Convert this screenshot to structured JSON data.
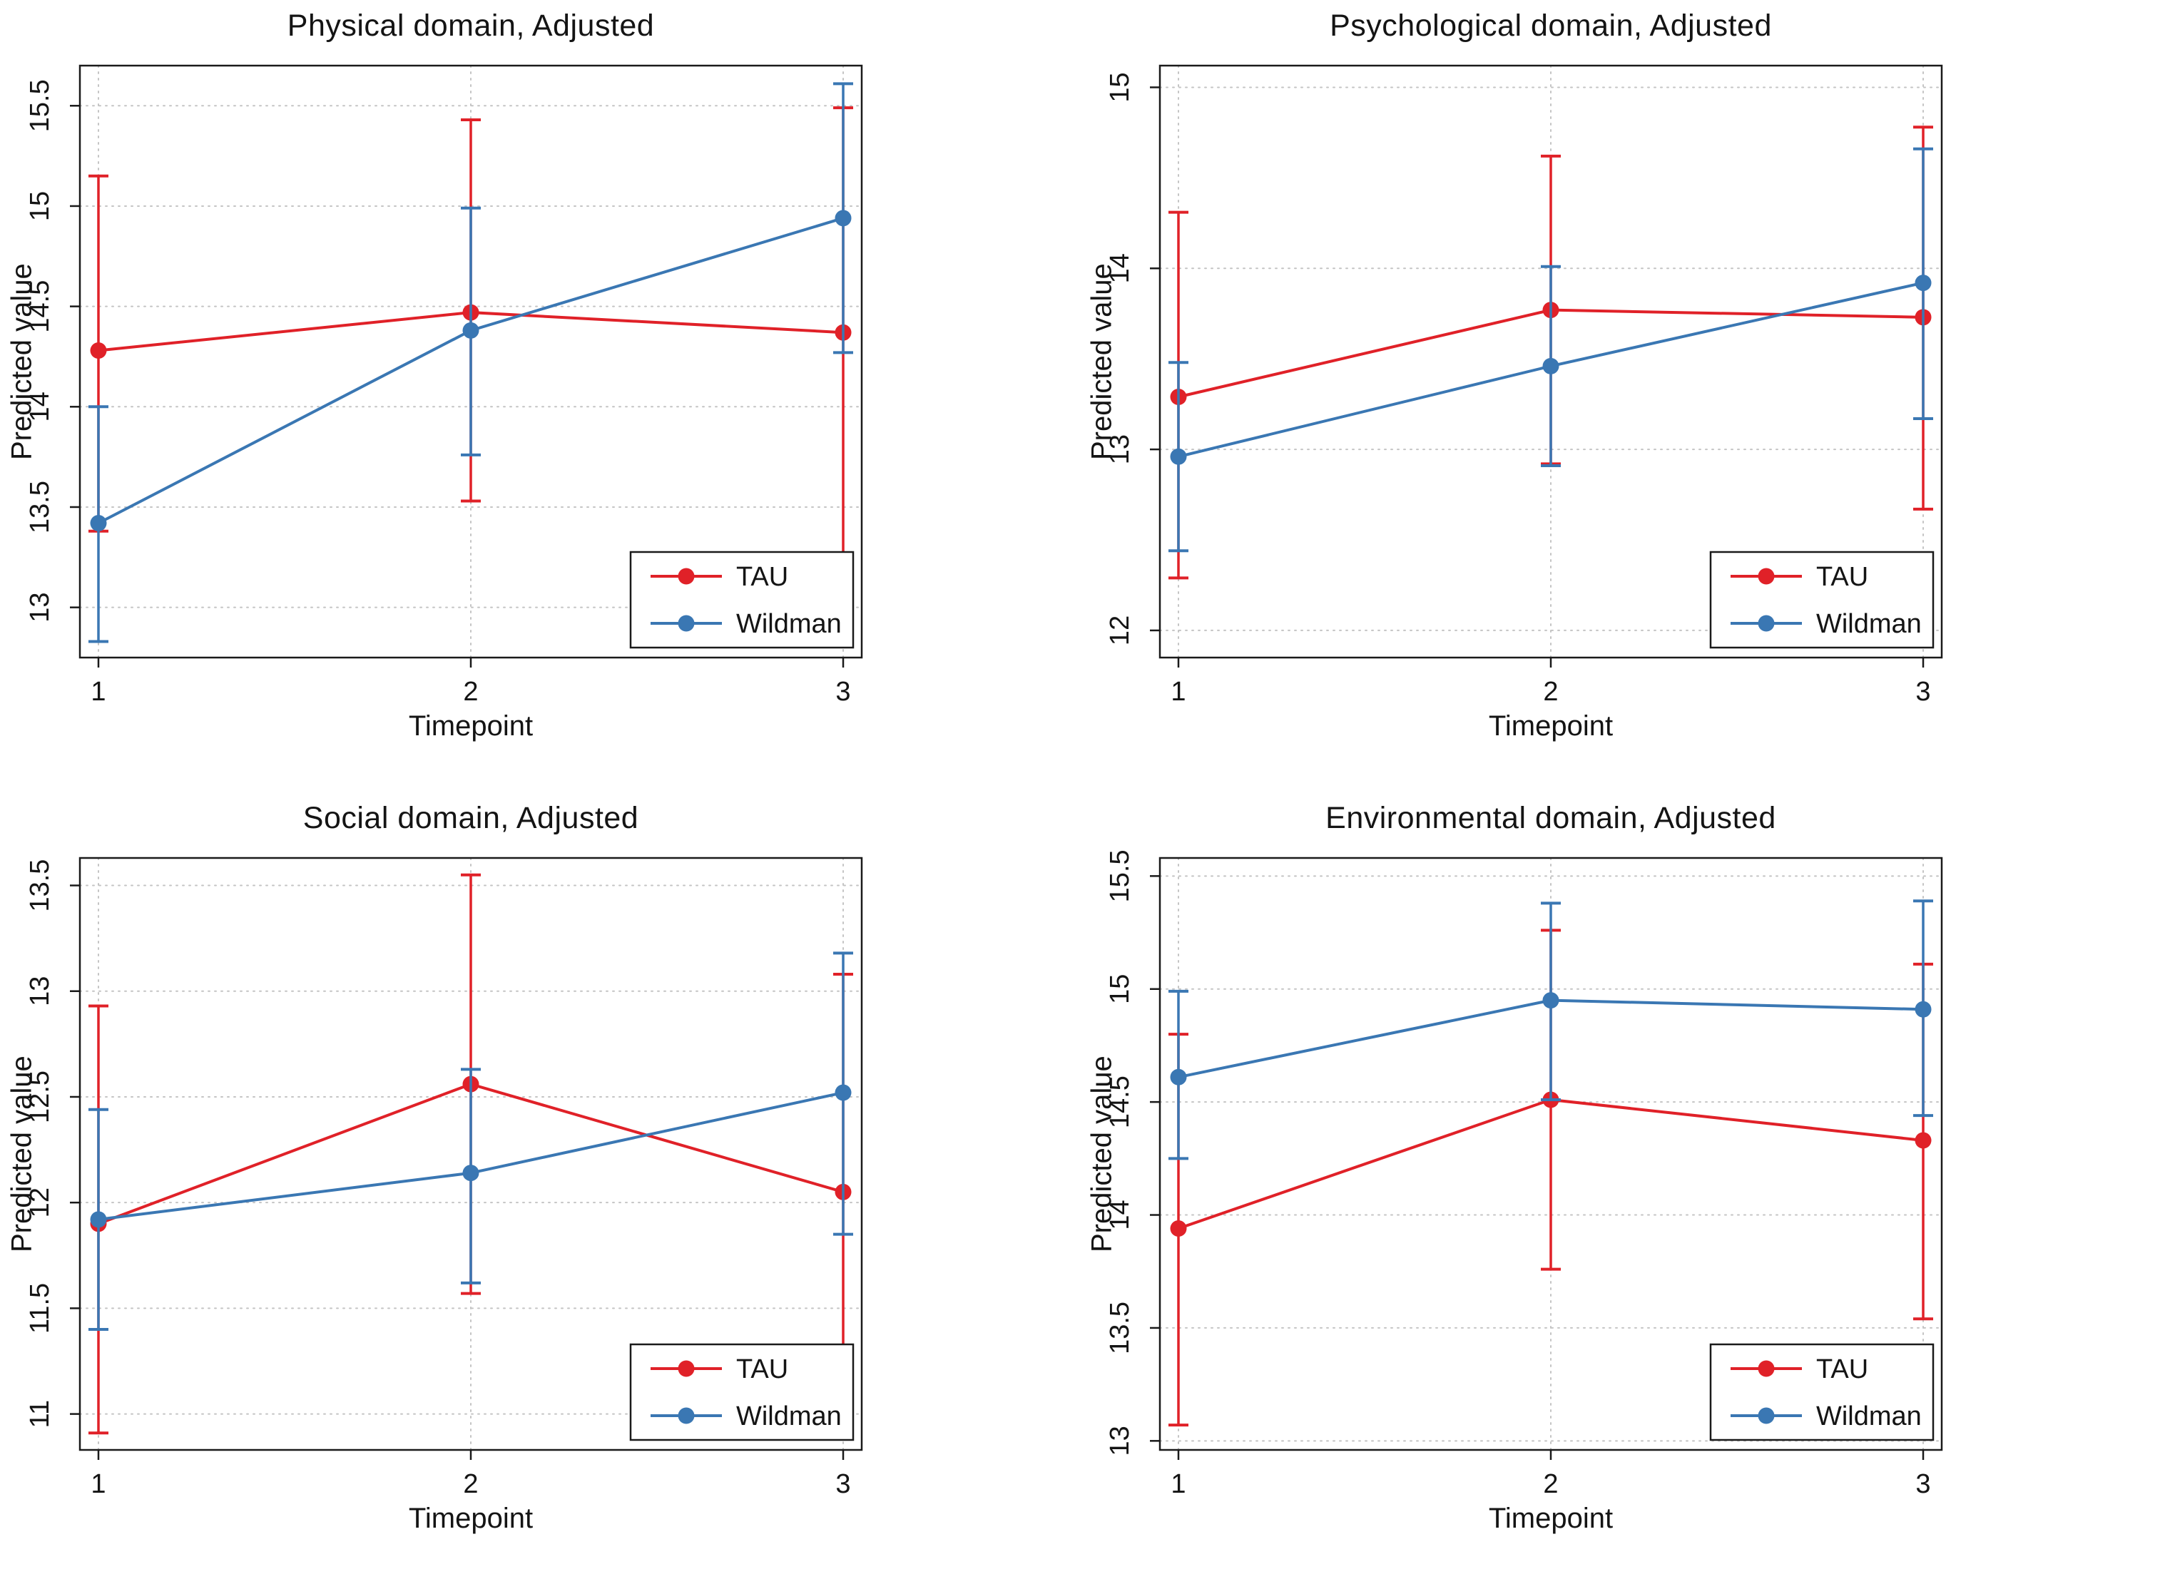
{
  "figure": {
    "background": "#ffffff",
    "grid_color": "#c4c4c4",
    "axis_color": "#1a1a1a",
    "text_color": "#141414"
  },
  "chart_data": [
    {
      "type": "line",
      "title": "Physical domain, Adjusted",
      "xlabel": "Timepoint",
      "ylabel": "Predicted value",
      "x": [
        1,
        2,
        3
      ],
      "xticklabels": [
        "1",
        "2",
        "3"
      ],
      "yticks": [
        13,
        13.5,
        14,
        14.5,
        15,
        15.5
      ],
      "ylim": [
        12.75,
        15.7
      ],
      "grid": true,
      "legend_position": "bottom-right",
      "series": [
        {
          "name": "TAU",
          "color": "#e02128",
          "values": [
            14.28,
            14.47,
            14.37
          ],
          "ci_low": [
            13.38,
            13.53,
            13.27
          ],
          "ci_high": [
            15.15,
            15.43,
            15.49
          ]
        },
        {
          "name": "Wildman",
          "color": "#3a77b3",
          "values": [
            13.42,
            14.38,
            14.94
          ],
          "ci_low": [
            12.83,
            13.76,
            14.27
          ],
          "ci_high": [
            14.0,
            14.99,
            15.61
          ]
        }
      ]
    },
    {
      "type": "line",
      "title": "Psychological domain, Adjusted",
      "xlabel": "Timepoint",
      "ylabel": "Predicted value",
      "x": [
        1,
        2,
        3
      ],
      "xticklabels": [
        "1",
        "2",
        "3"
      ],
      "yticks": [
        12,
        13,
        14,
        15
      ],
      "ylim": [
        11.85,
        15.12
      ],
      "grid": true,
      "legend_position": "bottom-right",
      "series": [
        {
          "name": "TAU",
          "color": "#e02128",
          "values": [
            13.29,
            13.77,
            13.73
          ],
          "ci_low": [
            12.29,
            12.92,
            12.67
          ],
          "ci_high": [
            14.31,
            14.62,
            14.78
          ]
        },
        {
          "name": "Wildman",
          "color": "#3a77b3",
          "values": [
            12.96,
            13.46,
            13.92
          ],
          "ci_low": [
            12.44,
            12.91,
            13.17
          ],
          "ci_high": [
            13.48,
            14.01,
            14.66
          ]
        }
      ]
    },
    {
      "type": "line",
      "title": "Social domain, Adjusted",
      "xlabel": "Timepoint",
      "ylabel": "Predicted value",
      "x": [
        1,
        2,
        3
      ],
      "xticklabels": [
        "1",
        "2",
        "3"
      ],
      "yticks": [
        11,
        11.5,
        12,
        12.5,
        13,
        13.5
      ],
      "ylim": [
        10.83,
        13.63
      ],
      "grid": true,
      "legend_position": "bottom-right",
      "series": [
        {
          "name": "TAU",
          "color": "#e02128",
          "values": [
            11.9,
            12.56,
            12.05
          ],
          "ci_low": [
            10.91,
            11.57,
            11.0
          ],
          "ci_high": [
            12.93,
            13.55,
            13.08
          ]
        },
        {
          "name": "Wildman",
          "color": "#3a77b3",
          "values": [
            11.92,
            12.14,
            12.52
          ],
          "ci_low": [
            11.4,
            11.62,
            11.85
          ],
          "ci_high": [
            12.44,
            12.63,
            13.18
          ]
        }
      ]
    },
    {
      "type": "line",
      "title": "Environmental domain, Adjusted",
      "xlabel": "Timepoint",
      "ylabel": "Predicted value",
      "x": [
        1,
        2,
        3
      ],
      "xticklabels": [
        "1",
        "2",
        "3"
      ],
      "yticks": [
        13,
        13.5,
        14,
        14.5,
        15,
        15.5
      ],
      "ylim": [
        12.96,
        15.58
      ],
      "grid": true,
      "legend_position": "bottom-right",
      "series": [
        {
          "name": "TAU",
          "color": "#e02128",
          "values": [
            13.94,
            14.51,
            14.33
          ],
          "ci_low": [
            13.07,
            13.76,
            13.54
          ],
          "ci_high": [
            14.8,
            15.26,
            15.11
          ]
        },
        {
          "name": "Wildman",
          "color": "#3a77b3",
          "values": [
            14.61,
            14.95,
            14.91
          ],
          "ci_low": [
            14.25,
            14.51,
            14.44
          ],
          "ci_high": [
            14.99,
            15.38,
            15.39
          ]
        }
      ]
    }
  ]
}
